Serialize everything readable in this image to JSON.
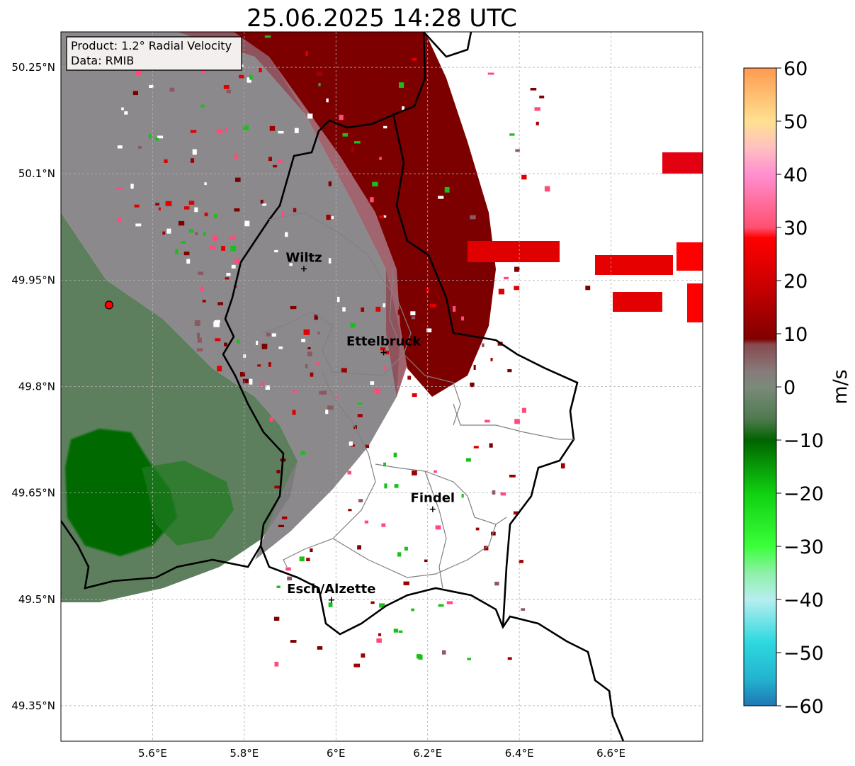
{
  "title": "25.06.2025 14:28 UTC",
  "info_box": {
    "product": "Product: 1.2° Radial Velocity",
    "data": "Data: RMIB"
  },
  "map": {
    "lon_range": [
      5.4,
      6.8
    ],
    "lat_range": [
      49.3,
      50.3
    ],
    "lat_ticks": [
      {
        "value": 50.25,
        "label": "50.25°N"
      },
      {
        "value": 50.1,
        "label": "50.1°N"
      },
      {
        "value": 49.95,
        "label": "49.95°N"
      },
      {
        "value": 49.8,
        "label": "49.8°N"
      },
      {
        "value": 49.65,
        "label": "49.65°N"
      },
      {
        "value": 49.5,
        "label": "49.5°N"
      },
      {
        "value": 49.35,
        "label": "49.35°N"
      }
    ],
    "lon_ticks": [
      {
        "value": 5.6,
        "label": "5.6°E"
      },
      {
        "value": 5.8,
        "label": "5.8°E"
      },
      {
        "value": 6.0,
        "label": "6°E"
      },
      {
        "value": 6.2,
        "label": "6.2°E"
      },
      {
        "value": 6.4,
        "label": "6.4°E"
      },
      {
        "value": 6.6,
        "label": "6.6°E"
      }
    ],
    "grid": true,
    "radar_site": {
      "lon": 5.505,
      "lat": 49.915,
      "color": "#ff0000"
    },
    "cities": [
      {
        "name": "Wiltz",
        "lon": 5.93,
        "lat": 49.966
      },
      {
        "name": "Ettelbruck",
        "lon": 6.104,
        "lat": 49.848
      },
      {
        "name": "Findel",
        "lon": 6.211,
        "lat": 49.627
      },
      {
        "name": "Esch/Alzette",
        "lon": 5.99,
        "lat": 49.499
      }
    ]
  },
  "colorbar": {
    "label": "m/s",
    "range": [
      -60,
      60
    ],
    "ticks": [
      {
        "value": 60,
        "label": "60"
      },
      {
        "value": 50,
        "label": "50"
      },
      {
        "value": 40,
        "label": "40"
      },
      {
        "value": 30,
        "label": "30"
      },
      {
        "value": 20,
        "label": "20"
      },
      {
        "value": 10,
        "label": "10"
      },
      {
        "value": 0,
        "label": "0"
      },
      {
        "value": -10,
        "label": "−10"
      },
      {
        "value": -20,
        "label": "−20"
      },
      {
        "value": -30,
        "label": "−30"
      },
      {
        "value": -40,
        "label": "−40"
      },
      {
        "value": -50,
        "label": "−50"
      },
      {
        "value": -60,
        "label": "−60"
      }
    ],
    "stops": [
      {
        "value": -60,
        "color": "#1f77b4"
      },
      {
        "value": -55,
        "color": "#22b3cf"
      },
      {
        "value": -48,
        "color": "#2ed9df"
      },
      {
        "value": -40,
        "color": "#b7eef0"
      },
      {
        "value": -35,
        "color": "#8ef0a8"
      },
      {
        "value": -30,
        "color": "#3aff3a"
      },
      {
        "value": -20,
        "color": "#10d010"
      },
      {
        "value": -10,
        "color": "#006400"
      },
      {
        "value": -6,
        "color": "#4f7a4f"
      },
      {
        "value": 0,
        "color": "#7a8a7a"
      },
      {
        "value": 3,
        "color": "#877a7a"
      },
      {
        "value": 8,
        "color": "#874a50"
      },
      {
        "value": 9,
        "color": "#800000"
      },
      {
        "value": 20,
        "color": "#d00000"
      },
      {
        "value": 28,
        "color": "#ff0000"
      },
      {
        "value": 30,
        "color": "#ff5070"
      },
      {
        "value": 40,
        "color": "#ff8fd0"
      },
      {
        "value": 45,
        "color": "#ffc0c0"
      },
      {
        "value": 50,
        "color": "#ffe090"
      },
      {
        "value": 60,
        "color": "#ff9a50"
      }
    ]
  }
}
